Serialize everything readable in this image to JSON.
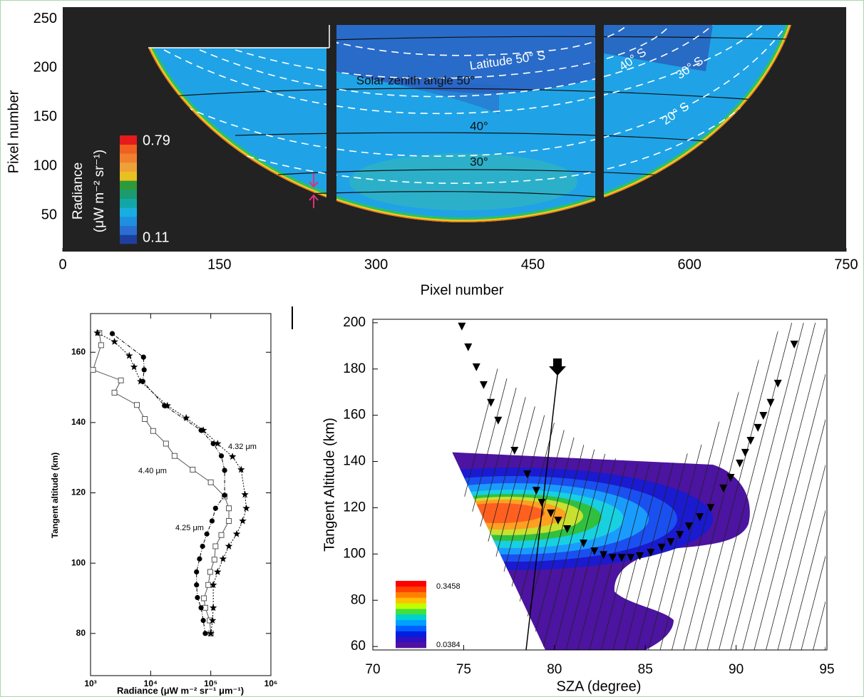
{
  "chart_data": [
    {
      "type": "heatmap",
      "xlabel": "Pixel number",
      "ylabel": "Pixel number",
      "xlim": [
        0,
        750
      ],
      "xticks": [
        0,
        150,
        300,
        450,
        600,
        750
      ],
      "ylim": [
        13,
        262
      ],
      "yticks": [
        50,
        100,
        150,
        200,
        250
      ],
      "colorbar": {
        "label": [
          "Radiance",
          "(μW m⁻² sr⁻¹)"
        ],
        "ticks": [
          0.11,
          0.79
        ],
        "colors": [
          "#1f3f9f",
          "#2a6fd0",
          "#1f8fe0",
          "#18aee0",
          "#12a6a6",
          "#1c9a70",
          "#2e9a3a",
          "#e8c020",
          "#f0a038",
          "#f08030",
          "#f06020",
          "#e41a1c"
        ]
      },
      "annotations": [
        "Latitude 50° S",
        "Solar zenith angle 50°",
        "40°",
        "30°",
        "40° S",
        "30° S",
        "20° S"
      ]
    },
    {
      "type": "line",
      "xlabel": "Radiance (μW m⁻² sr⁻¹ μm⁻¹)",
      "ylabel": "Tangent altitude (km)",
      "xscale": "log",
      "xlim": [
        1000,
        1000000
      ],
      "xticks": [
        {
          "value": 1000,
          "label": "10³"
        },
        {
          "value": 10000,
          "label": "10⁴"
        },
        {
          "value": 100000,
          "label": "10⁵"
        },
        {
          "value": 1000000,
          "label": "10⁶"
        }
      ],
      "ylim": [
        68,
        171
      ],
      "yticks": [
        80,
        100,
        120,
        140,
        160
      ],
      "series": [
        {
          "name": "4.40 μm",
          "color": "#555555",
          "marker": "square",
          "line": "solid",
          "x": [
            100000,
            96000,
            81000,
            77000,
            91000,
            98000,
            115000,
            120000,
            150000,
            200000,
            200000,
            170000,
            100000,
            50000,
            25000,
            18000,
            11000,
            8000,
            5900,
            2500,
            3200,
            1100,
            1500,
            1400
          ],
          "values": [
            80,
            83.7,
            87.3,
            90,
            93.8,
            97.5,
            101,
            104.8,
            108,
            112,
            115.6,
            119,
            123,
            126.6,
            130.5,
            134,
            137.6,
            141,
            145,
            148.5,
            152,
            155,
            162,
            165.5
          ]
        },
        {
          "name": "4.32 μm",
          "color": "#000000",
          "marker": "star",
          "line": "dotted",
          "x": [
            100000,
            107000,
            110000,
            110000,
            130000,
            160000,
            200000,
            270000,
            340000,
            390000,
            370000,
            320000,
            230000,
            130000,
            75000,
            39000,
            19000,
            6800,
            5300,
            4400,
            2500,
            1300
          ],
          "values": [
            80,
            83.7,
            87.3,
            93.8,
            97.5,
            101.2,
            104.8,
            108.3,
            112,
            115.6,
            119.5,
            126.6,
            130.3,
            134,
            137.8,
            141.3,
            144.8,
            151.7,
            155.8,
            159,
            163,
            165.5
          ]
        },
        {
          "name": "4.25 μm",
          "color": "#000000",
          "marker": "circle",
          "line": "dashdot",
          "x": [
            81000,
            75000,
            69000,
            60000,
            58000,
            58000,
            65000,
            73000,
            86000,
            105000,
            120000,
            170000,
            170000,
            150000,
            110000,
            69000,
            17000,
            7400,
            7800,
            7600,
            2300
          ],
          "values": [
            80,
            83.7,
            87.3,
            90.2,
            93.8,
            97.5,
            101.2,
            104.8,
            108.3,
            112,
            115.6,
            119.3,
            126.4,
            130.5,
            134,
            137.8,
            144.8,
            151.7,
            155,
            158.6,
            165.3
          ]
        }
      ]
    },
    {
      "type": "scatter",
      "xlabel": "SZA (degree)",
      "ylabel": "Tangent Altitude (km)",
      "xlim": [
        70,
        95
      ],
      "xticks": [
        70,
        75,
        80,
        85,
        90,
        95
      ],
      "ylim": [
        58.5,
        201.5
      ],
      "yticks": [
        60,
        80,
        100,
        120,
        140,
        160,
        180,
        200
      ],
      "colorbar": {
        "ticks": [
          0.0384,
          0.3458
        ],
        "colors": [
          "#5010a0",
          "#3010c0",
          "#0020e0",
          "#0060ff",
          "#00a0ff",
          "#00d0d0",
          "#40e040",
          "#c0ff00",
          "#ffc000",
          "#ff8000",
          "#ff4000",
          "#ff0000"
        ]
      },
      "series": [
        {
          "color": "#000000",
          "marker": "triangle-down",
          "x": [
            74.9,
            75.25,
            75.7,
            76.1,
            76.5,
            76.9,
            77.8,
            78.5,
            79.0,
            79.3,
            79.8,
            80.2,
            80.7,
            81.6,
            82.2,
            82.7,
            83.2,
            83.7,
            84.2,
            84.7,
            85.3,
            85.9,
            86.4,
            86.9,
            87.4,
            88.0,
            88.6,
            89.3,
            89.7,
            90.2,
            90.5,
            90.8,
            91.2,
            91.5,
            91.9,
            92.3,
            93.2
          ],
          "values": [
            198.5,
            189.5,
            180.9,
            173.2,
            165.5,
            157.8,
            144.8,
            134.6,
            127.5,
            122.3,
            117.7,
            114.6,
            110.9,
            104.7,
            101.3,
            99.7,
            98.5,
            98.5,
            98.5,
            99.2,
            100.7,
            102.9,
            105.3,
            108.4,
            112.1,
            116.1,
            120.1,
            128.5,
            133.1,
            139.3,
            143.9,
            149.1,
            154.7,
            159.9,
            165.5,
            173.8,
            190.7
          ]
        }
      ]
    }
  ]
}
